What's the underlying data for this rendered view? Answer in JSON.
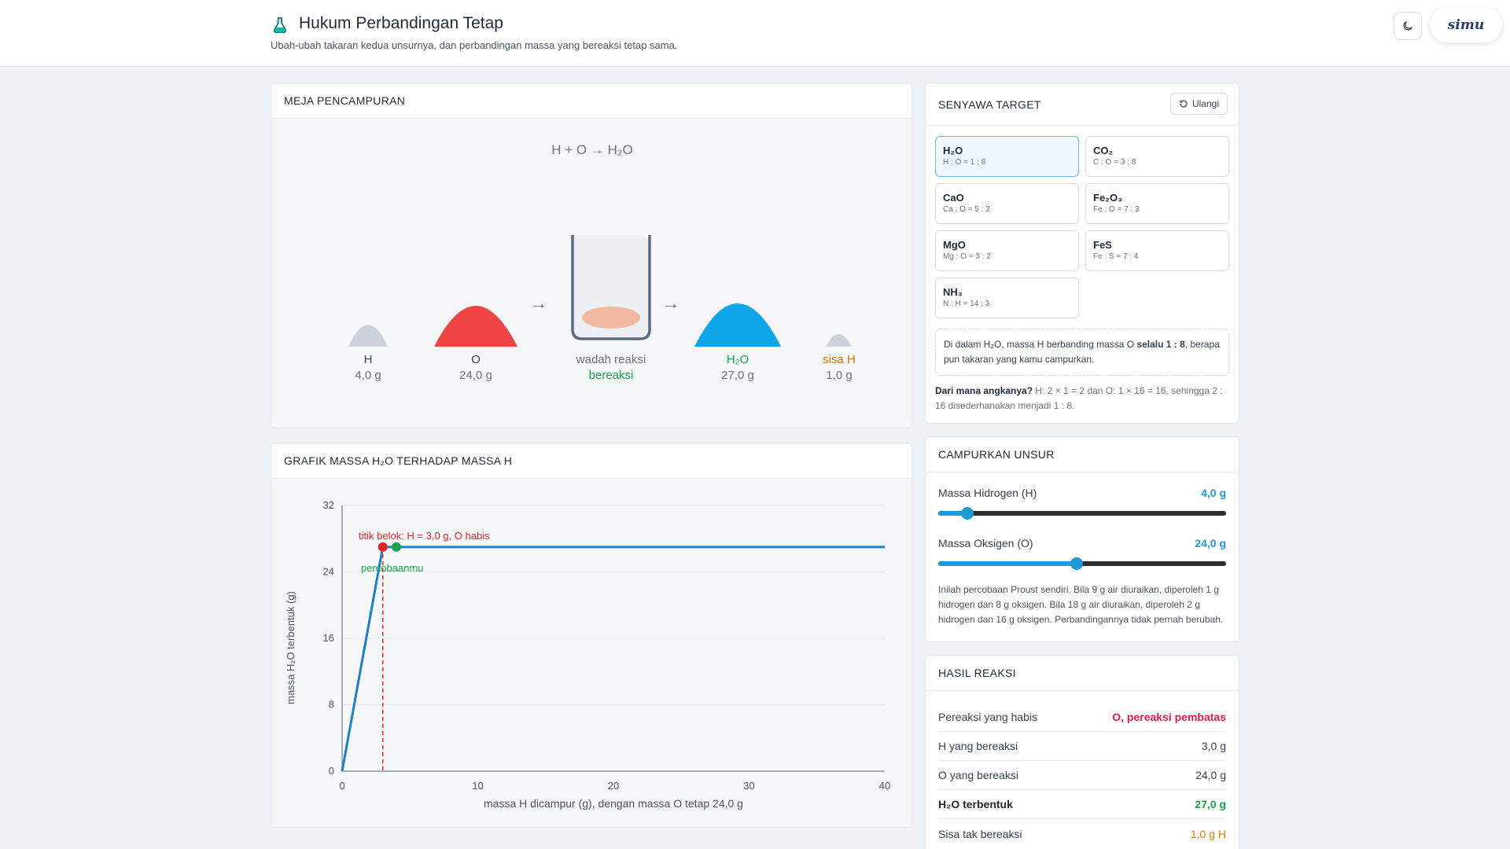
{
  "header": {
    "title": "Hukum Perbandingan Tetap",
    "subtitle": "Ubah-ubah takaran kedua unsurnya, dan perbandingan massa yang bereaksi tetap sama.",
    "logo_text": "simu"
  },
  "mixing": {
    "title": "MEJA PENCAMPURAN",
    "equation": "H + O → H₂O",
    "h_label": "H",
    "h_mass": "4,0 g",
    "o_label": "O",
    "o_mass": "24,0 g",
    "vessel_label": "wadah reaksi",
    "vessel_status": "bereaksi",
    "product_label": "H₂O",
    "product_mass": "27,0 g",
    "leftover_label": "sisa H",
    "leftover_mass": "1,0 g",
    "arrow": "→",
    "colors": {
      "h": "#cbd2dc",
      "o": "#ef4444",
      "product": "#0ea5e9",
      "leftover": "#cbd2dc",
      "status": "#16a34a",
      "leftover_text": "#d97706"
    }
  },
  "graph": {
    "title": "GRAFIK MASSA H₂O TERHADAP MASSA H",
    "ylabel": "massa H₂O terbentuk (g)",
    "xlabel": "massa H dicampur (g), dengan massa O tetap 24,0 g",
    "breakpoint_label": "titik belok: H = 3,0 g, O habis",
    "trial_label": "percobaanmu"
  },
  "chart_data": {
    "type": "line",
    "x_ticks": [
      0,
      10,
      20,
      30,
      40
    ],
    "y_ticks": [
      0,
      8,
      16,
      24,
      32
    ],
    "xlim": [
      0,
      40
    ],
    "ylim": [
      0,
      32
    ],
    "series": [
      {
        "values": [
          [
            0,
            0
          ],
          [
            3,
            27
          ],
          [
            40,
            27
          ]
        ],
        "color": "#1e7fc1"
      }
    ],
    "breakpoint": {
      "x": 3,
      "y": 27,
      "color": "#dc2626"
    },
    "trial_point": {
      "x": 4,
      "y": 27,
      "color": "#16a34a"
    },
    "grid": true
  },
  "target": {
    "title": "SENYAWA TARGET",
    "reset_label": "Ulangi",
    "compounds": [
      {
        "formula": "H₂O",
        "ratio": "H : O = 1 : 8"
      },
      {
        "formula": "CO₂",
        "ratio": "C : O = 3 : 8"
      },
      {
        "formula": "CaO",
        "ratio": "Ca : O = 5 : 2"
      },
      {
        "formula": "Fe₂O₃",
        "ratio": "Fe : O = 7 : 3"
      },
      {
        "formula": "MgO",
        "ratio": "Mg : O = 3 : 2"
      },
      {
        "formula": "FeS",
        "ratio": "Fe : S = 7 : 4"
      },
      {
        "formula": "NH₃",
        "ratio": "N : H = 14 : 3"
      }
    ],
    "info_pre": "Di dalam H₂O, massa H berbanding massa O ",
    "info_bold": "selalu 1 : 8",
    "info_post": ", berapa pun takaran yang kamu campurkan.",
    "origin_bold": "Dari mana angkanya?",
    "origin_text": " H: 2 × 1 = 2 dan O: 1 × 16 = 16, sehingga 2 : 16 disederhanakan menjadi 1 : 8."
  },
  "mix": {
    "title": "CAMPURKAN UNSUR",
    "h_label": "Massa Hidrogen (H)",
    "h_value": "4,0 g",
    "h_fraction": 0.1,
    "o_label": "Massa Oksigen (O)",
    "o_value": "24,0 g",
    "o_fraction": 0.48,
    "note": "Inilah percobaan Proust sendiri. Bila 9 g air diuraikan, diperoleh 1 g hidrogen dan 8 g oksigen. Bila 18 g air diuraikan, diperoleh 2 g hidrogen dan 16 g oksigen. Perbandingannya tidak pernah berubah."
  },
  "result": {
    "title": "HASIL REAKSI",
    "rows": [
      {
        "label": "Pereaksi yang habis",
        "value": "O, pereaksi pembatas"
      },
      {
        "label": "H yang bereaksi",
        "value": "3,0 g"
      },
      {
        "label": "O yang bereaksi",
        "value": "24,0 g"
      },
      {
        "label": "H₂O terbentuk",
        "value": "27,0 g"
      },
      {
        "label": "Sisa tak bereaksi",
        "value": "1,0 g H"
      }
    ]
  }
}
